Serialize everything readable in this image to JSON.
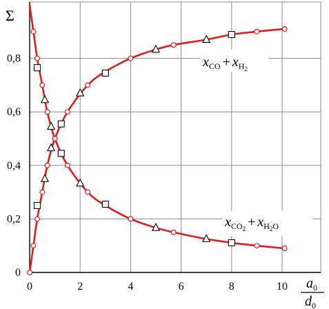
{
  "chart_data": {
    "type": "line",
    "ylabel": "Σ",
    "xlabel": {
      "numerator": "a",
      "numerator_sub": "0",
      "denominator": "d",
      "denominator_sub": "0"
    },
    "xlim": [
      0,
      11.1
    ],
    "ylim": [
      0,
      1.03
    ],
    "x_ticks": [
      "0",
      "2",
      "4",
      "6",
      "8",
      "10"
    ],
    "y_ticks": [
      "0",
      "0,2",
      "0,4",
      "0,6",
      "0,8"
    ],
    "grid": true,
    "curve_color": "#e01b1b",
    "marker_color": "#e01b1b",
    "series": [
      {
        "name": {
          "a": "x",
          "a_sub": "CO",
          "plus": "+",
          "b": "x",
          "b_sub": "H",
          "b_sub2": "2"
        },
        "label_position": "upper-right",
        "x": [
          0.0,
          0.15,
          0.3,
          0.5,
          0.7,
          1.0,
          1.5,
          2.3,
          3.0,
          4.0,
          5.0,
          5.7,
          7.0,
          8.0,
          9.0,
          10.1
        ],
        "y": [
          0.0,
          0.1,
          0.2,
          0.3,
          0.4,
          0.5,
          0.6,
          0.7,
          0.75,
          0.8,
          0.833,
          0.85,
          0.87,
          0.889,
          0.9,
          0.91
        ],
        "circles": [
          [
            0.0,
            0.0
          ],
          [
            0.15,
            0.1
          ],
          [
            0.3,
            0.2
          ],
          [
            0.5,
            0.3
          ],
          [
            0.7,
            0.4
          ],
          [
            1.0,
            0.5
          ],
          [
            1.5,
            0.6
          ],
          [
            2.3,
            0.7
          ],
          [
            4.0,
            0.8
          ],
          [
            5.7,
            0.85
          ],
          [
            9.0,
            0.9
          ],
          [
            10.1,
            0.91
          ]
        ],
        "triangles": [
          [
            0.6,
            0.35
          ],
          [
            0.85,
            0.465
          ],
          [
            2.0,
            0.67
          ],
          [
            5.0,
            0.833
          ],
          [
            7.0,
            0.87
          ]
        ],
        "squares": [
          [
            0.3,
            0.25
          ],
          [
            1.25,
            0.555
          ],
          [
            3.0,
            0.745
          ],
          [
            8.0,
            0.889
          ]
        ]
      },
      {
        "name": {
          "a": "x",
          "a_sub": "CO",
          "a_sub2": "2",
          "plus": "+",
          "b": "x",
          "b_sub": "H",
          "b_sub2": "2",
          "b_sub3": "O"
        },
        "label_position": "lower-right",
        "x": [
          0.0,
          0.15,
          0.3,
          0.5,
          0.7,
          1.0,
          1.5,
          2.3,
          3.0,
          4.0,
          5.0,
          5.7,
          7.0,
          8.0,
          9.0,
          10.1
        ],
        "y": [
          1.0,
          0.9,
          0.8,
          0.7,
          0.6,
          0.5,
          0.4,
          0.3,
          0.25,
          0.2,
          0.167,
          0.15,
          0.125,
          0.111,
          0.1,
          0.09
        ],
        "circles": [
          [
            0.15,
            0.9
          ],
          [
            0.3,
            0.8
          ],
          [
            0.5,
            0.7
          ],
          [
            0.7,
            0.6
          ],
          [
            1.0,
            0.5
          ],
          [
            1.5,
            0.4
          ],
          [
            2.3,
            0.3
          ],
          [
            4.0,
            0.2
          ],
          [
            5.7,
            0.15
          ],
          [
            9.0,
            0.1
          ],
          [
            10.1,
            0.09
          ]
        ],
        "triangles": [
          [
            0.6,
            0.645
          ],
          [
            0.85,
            0.545
          ],
          [
            2.0,
            0.333
          ],
          [
            5.0,
            0.167
          ],
          [
            7.0,
            0.125
          ]
        ],
        "squares": [
          [
            0.3,
            0.765
          ],
          [
            1.25,
            0.445
          ],
          [
            3.0,
            0.255
          ],
          [
            8.0,
            0.111
          ]
        ]
      }
    ]
  }
}
